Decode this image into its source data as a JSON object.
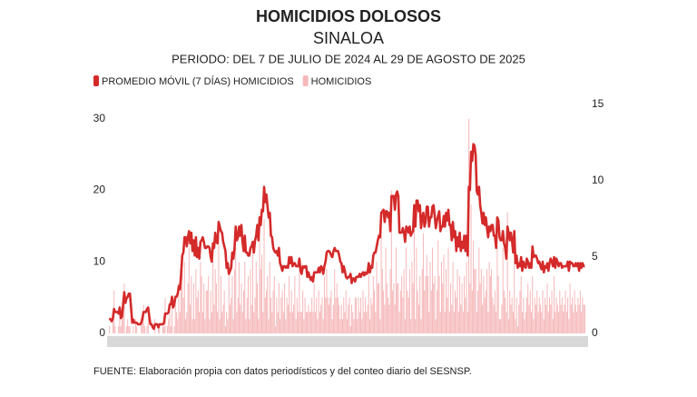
{
  "chart_data": {
    "type": "combo",
    "title": "HOMICIDIOS DOLOSOS",
    "subtitle": "SINALOA",
    "period": "PERIODO: DEL 7 DE JULIO DE 2024 AL 29 DE AGOSTO DE 2025",
    "source": "FUENTE: Elaboración propia con datos periodísticos y del conteo diario del SESNSP.",
    "ylim": [
      0,
      32
    ],
    "yticks": [
      0,
      10,
      20,
      30
    ],
    "y2lim": [
      0,
      15
    ],
    "y2ticks": [
      0,
      5,
      10,
      15
    ],
    "grid": false,
    "legend": "top-left",
    "series": [
      {
        "name": "PROMEDIO MÓVIL (7 DÍAS) HOMICIDIOS",
        "type": "line",
        "axis": "y2",
        "color": "#d42a2a",
        "values": [
          1.0,
          0.9,
          0.8,
          1.0,
          1.6,
          1.4,
          1.4,
          1.4,
          1.3,
          1.7,
          1.0,
          1.1,
          1.9,
          2.7,
          2.0,
          2.3,
          2.4,
          2.6,
          2.6,
          1.7,
          0.7,
          0.9,
          0.7,
          0.7,
          0.7,
          0.6,
          0.6,
          0.6,
          0.7,
          1.0,
          1.4,
          1.4,
          1.4,
          1.6,
          1.7,
          1.1,
          0.6,
          0.6,
          0.4,
          0.3,
          0.6,
          0.6,
          0.6,
          0.4,
          0.6,
          0.6,
          0.6,
          0.6,
          0.7,
          1.3,
          1.3,
          1.3,
          1.4,
          1.9,
          1.9,
          2.4,
          1.7,
          1.9,
          2.4,
          2.4,
          2.6,
          3.1,
          2.9,
          3.9,
          5.1,
          5.3,
          6.3,
          6.3,
          5.7,
          6.3,
          6.7,
          5.9,
          6.6,
          5.4,
          6.1,
          5.1,
          6.3,
          5.0,
          5.6,
          4.9,
          6.0,
          6.1,
          6.3,
          6.0,
          5.6,
          5.6,
          5.7,
          5.7,
          5.6,
          5.0,
          4.7,
          5.9,
          5.6,
          6.6,
          6.0,
          5.9,
          7.3,
          7.0,
          6.7,
          6.6,
          6.0,
          5.7,
          5.4,
          4.3,
          4.6,
          3.9,
          4.1,
          4.3,
          5.3,
          4.9,
          5.6,
          7.0,
          6.1,
          6.3,
          7.0,
          6.4,
          7.1,
          6.0,
          5.4,
          6.4,
          5.3,
          5.3,
          5.1,
          5.1,
          5.6,
          5.7,
          6.0,
          5.3,
          6.1,
          6.4,
          7.1,
          6.1,
          7.6,
          7.1,
          8.1,
          8.0,
          9.6,
          8.6,
          9.1,
          8.3,
          7.6,
          7.9,
          6.4,
          6.3,
          5.6,
          5.4,
          5.3,
          5.4,
          5.1,
          5.6,
          4.6,
          4.4,
          4.1,
          4.4,
          4.4,
          4.3,
          4.4,
          4.3,
          5.0,
          4.6,
          5.0,
          4.4,
          4.6,
          4.6,
          4.4,
          4.4,
          4.4,
          4.9,
          4.1,
          3.9,
          4.4,
          4.3,
          4.4,
          4.4,
          3.7,
          4.0,
          3.7,
          3.5,
          3.7,
          3.4,
          4.0,
          4.0,
          4.0,
          4.0,
          4.3,
          4.0,
          4.4,
          4.3,
          3.9,
          4.4,
          4.7,
          5.3,
          5.4,
          5.4,
          5.3,
          5.1,
          5.0,
          5.4,
          5.6,
          5.4,
          5.4,
          5.4,
          5.1,
          4.7,
          4.6,
          4.0,
          4.4,
          4.1,
          3.7,
          3.6,
          3.7,
          3.7,
          3.9,
          3.3,
          3.6,
          3.6,
          3.4,
          3.7,
          3.7,
          3.7,
          3.9,
          3.7,
          3.9,
          4.0,
          3.8,
          4.0,
          3.9,
          4.0,
          4.6,
          4.0,
          4.4,
          4.3,
          5.1,
          5.3,
          5.3,
          5.7,
          6.1,
          6.4,
          6.3,
          7.9,
          8.0,
          8.1,
          7.3,
          8.0,
          8.0,
          7.6,
          7.9,
          6.7,
          9.0,
          9.0,
          9.0,
          8.1,
          9.1,
          9.3,
          9.0,
          6.6,
          6.6,
          6.6,
          6.9,
          6.6,
          6.0,
          7.0,
          6.9,
          6.6,
          7.0,
          6.4,
          6.6,
          6.7,
          8.4,
          7.0,
          8.7,
          8.7,
          8.0,
          8.4,
          6.9,
          7.6,
          7.9,
          7.0,
          7.3,
          8.3,
          8.3,
          7.0,
          7.6,
          7.6,
          8.3,
          8.4,
          7.7,
          6.9,
          7.4,
          7.7,
          8.0,
          6.7,
          7.0,
          7.0,
          7.7,
          7.0,
          7.9,
          7.4,
          8.1,
          7.1,
          7.1,
          6.1,
          7.3,
          6.3,
          6.7,
          5.4,
          6.3,
          5.7,
          6.6,
          5.4,
          6.0,
          5.6,
          6.4,
          5.4,
          6.4,
          5.1,
          9.6,
          9.4,
          11.9,
          11.3,
          12.4,
          12.3,
          11.7,
          9.3,
          9.1,
          9.6,
          8.4,
          7.9,
          7.2,
          7.9,
          7.1,
          7.6,
          6.9,
          6.3,
          7.0,
          6.7,
          7.1,
          7.1,
          6.4,
          6.4,
          5.6,
          7.6,
          7.4,
          6.3,
          6.1,
          6.1,
          6.7,
          5.9,
          5.6,
          4.9,
          7.0,
          6.6,
          6.1,
          6.6,
          6.1,
          5.3,
          6.7,
          4.6,
          5.1,
          4.3,
          4.6,
          4.4,
          5.0,
          4.1,
          4.7,
          4.4,
          4.3,
          4.9,
          4.7,
          4.3,
          4.6,
          4.3,
          5.7,
          5.0,
          5.1,
          5.1,
          4.9,
          4.6,
          4.7,
          4.4,
          4.2,
          4.7,
          4.0,
          4.4,
          4.3,
          4.6,
          4.1,
          4.6,
          4.9,
          4.7,
          4.4,
          5.0,
          4.3,
          4.9,
          4.7,
          4.4,
          4.6,
          4.6,
          4.3,
          4.4,
          4.4,
          4.4,
          4.4,
          4.7,
          4.1,
          4.7,
          4.6,
          4.6,
          4.4,
          4.4,
          4.6,
          4.4,
          4.6,
          4.1,
          4.6,
          4.3,
          4.6,
          4.4,
          4.4
        ]
      },
      {
        "name": "HOMICIDIOS",
        "type": "bar",
        "color": "#f5b8ba",
        "values": [
          1,
          0,
          0,
          2,
          6,
          1,
          0,
          0,
          1,
          3,
          1,
          2,
          5,
          7,
          0,
          1,
          2,
          1,
          1,
          0,
          0,
          1,
          0,
          2,
          1,
          0,
          0,
          0,
          2,
          3,
          4,
          1,
          0,
          1,
          2,
          0,
          0,
          0,
          0,
          0,
          2,
          0,
          0,
          1,
          1,
          0,
          0,
          1,
          1,
          5,
          0,
          1,
          2,
          3,
          1,
          5,
          0,
          1,
          4,
          3,
          2,
          7,
          3,
          8,
          9,
          5,
          10,
          2,
          3,
          7,
          12,
          4,
          8,
          2,
          7,
          2,
          9,
          5,
          6,
          3,
          10,
          8,
          3,
          7,
          2,
          6,
          6,
          8,
          2,
          6,
          3,
          10,
          4,
          9,
          7,
          3,
          14,
          2,
          8,
          3,
          4,
          6,
          1,
          3,
          2,
          9,
          4,
          5,
          8,
          2,
          9,
          12,
          3,
          5,
          10,
          4,
          7,
          3,
          6,
          10,
          2,
          5,
          8,
          2,
          9,
          4,
          12,
          3,
          5,
          10,
          7,
          2,
          14,
          9,
          11,
          3,
          16,
          5,
          6,
          8,
          2,
          10,
          5,
          3,
          6,
          8,
          1,
          5,
          3,
          7,
          2,
          5,
          6,
          3,
          7,
          2,
          5,
          4,
          8,
          3,
          6,
          3,
          4,
          8,
          2,
          5,
          3,
          9,
          3,
          3,
          6,
          2,
          5,
          3,
          3,
          4,
          3,
          3,
          5,
          3,
          7,
          3,
          5,
          2,
          6,
          3,
          4,
          5,
          2,
          8,
          5,
          9,
          5,
          4,
          5,
          6,
          2,
          4,
          9,
          5,
          7,
          5,
          4,
          2,
          4,
          2,
          5,
          3,
          6,
          2,
          4,
          5,
          1,
          4,
          3,
          2,
          5,
          5,
          2,
          5,
          3,
          5,
          2,
          6,
          3,
          5,
          3,
          4,
          9,
          2,
          5,
          4,
          8,
          6,
          3,
          10,
          7,
          7,
          2,
          16,
          9,
          6,
          4,
          12,
          7,
          5,
          4,
          9,
          20,
          6,
          7,
          4,
          12,
          7,
          7,
          3,
          6,
          8,
          5,
          9,
          2,
          12,
          6,
          5,
          9,
          2,
          10,
          7,
          15,
          2,
          12,
          6,
          4,
          8,
          2,
          9,
          14,
          6,
          8,
          11,
          8,
          3,
          10,
          6,
          12,
          7,
          8,
          2,
          6,
          13,
          8,
          3,
          10,
          7,
          11,
          3,
          9,
          5,
          12,
          3,
          7,
          4,
          10,
          3,
          6,
          5,
          9,
          3,
          8,
          4,
          7,
          3,
          8,
          5,
          10,
          3,
          30,
          7,
          18,
          6,
          13,
          9,
          9,
          3,
          6,
          12,
          7,
          9,
          4,
          8,
          5,
          6,
          9,
          3,
          10,
          8,
          9,
          5,
          4,
          6,
          3,
          16,
          8,
          2,
          2,
          4,
          12,
          6,
          5,
          3,
          17,
          2,
          6,
          4,
          5,
          3,
          10,
          2,
          5,
          1,
          4,
          6,
          8,
          3,
          5,
          2,
          3,
          5,
          7,
          4,
          6,
          3,
          8,
          2,
          5,
          4,
          6,
          3,
          5,
          4,
          3,
          6,
          2,
          5,
          4,
          7,
          3,
          5,
          4,
          6,
          2,
          8,
          3,
          5,
          4,
          3,
          6,
          4,
          5,
          3,
          4,
          6,
          3,
          5,
          2,
          7,
          4,
          5,
          3,
          6,
          4,
          3,
          5,
          4,
          6,
          3,
          5,
          4,
          4
        ]
      }
    ]
  }
}
